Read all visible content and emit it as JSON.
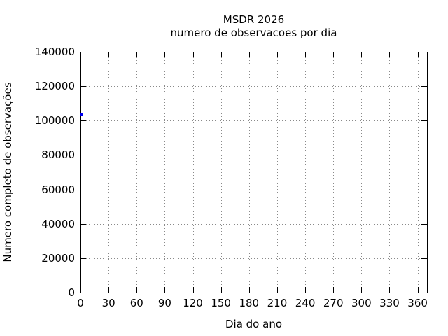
{
  "chart_data": {
    "type": "scatter",
    "title": "MSDR 2026",
    "subtitle": "numero de observacoes por dia",
    "xlabel": "Dia do ano",
    "ylabel": "Numero completo de observações",
    "xlim": [
      0,
      370
    ],
    "ylim": [
      0,
      140000
    ],
    "x_ticks": [
      0,
      30,
      60,
      90,
      120,
      150,
      180,
      210,
      240,
      270,
      300,
      330,
      360
    ],
    "y_ticks": [
      0,
      20000,
      40000,
      60000,
      80000,
      100000,
      120000,
      140000
    ],
    "grid": "dotted",
    "legend": "none",
    "series": [
      {
        "name": "numero de observacoes",
        "marker": "square",
        "color": "#0000ee",
        "points": [
          {
            "x": 1,
            "y": 103400
          }
        ]
      }
    ]
  },
  "colors": {
    "background": "#ffffff",
    "axis": "#000000",
    "grid": "#8a8a8a",
    "text": "#000000",
    "point": "#0000ee"
  }
}
